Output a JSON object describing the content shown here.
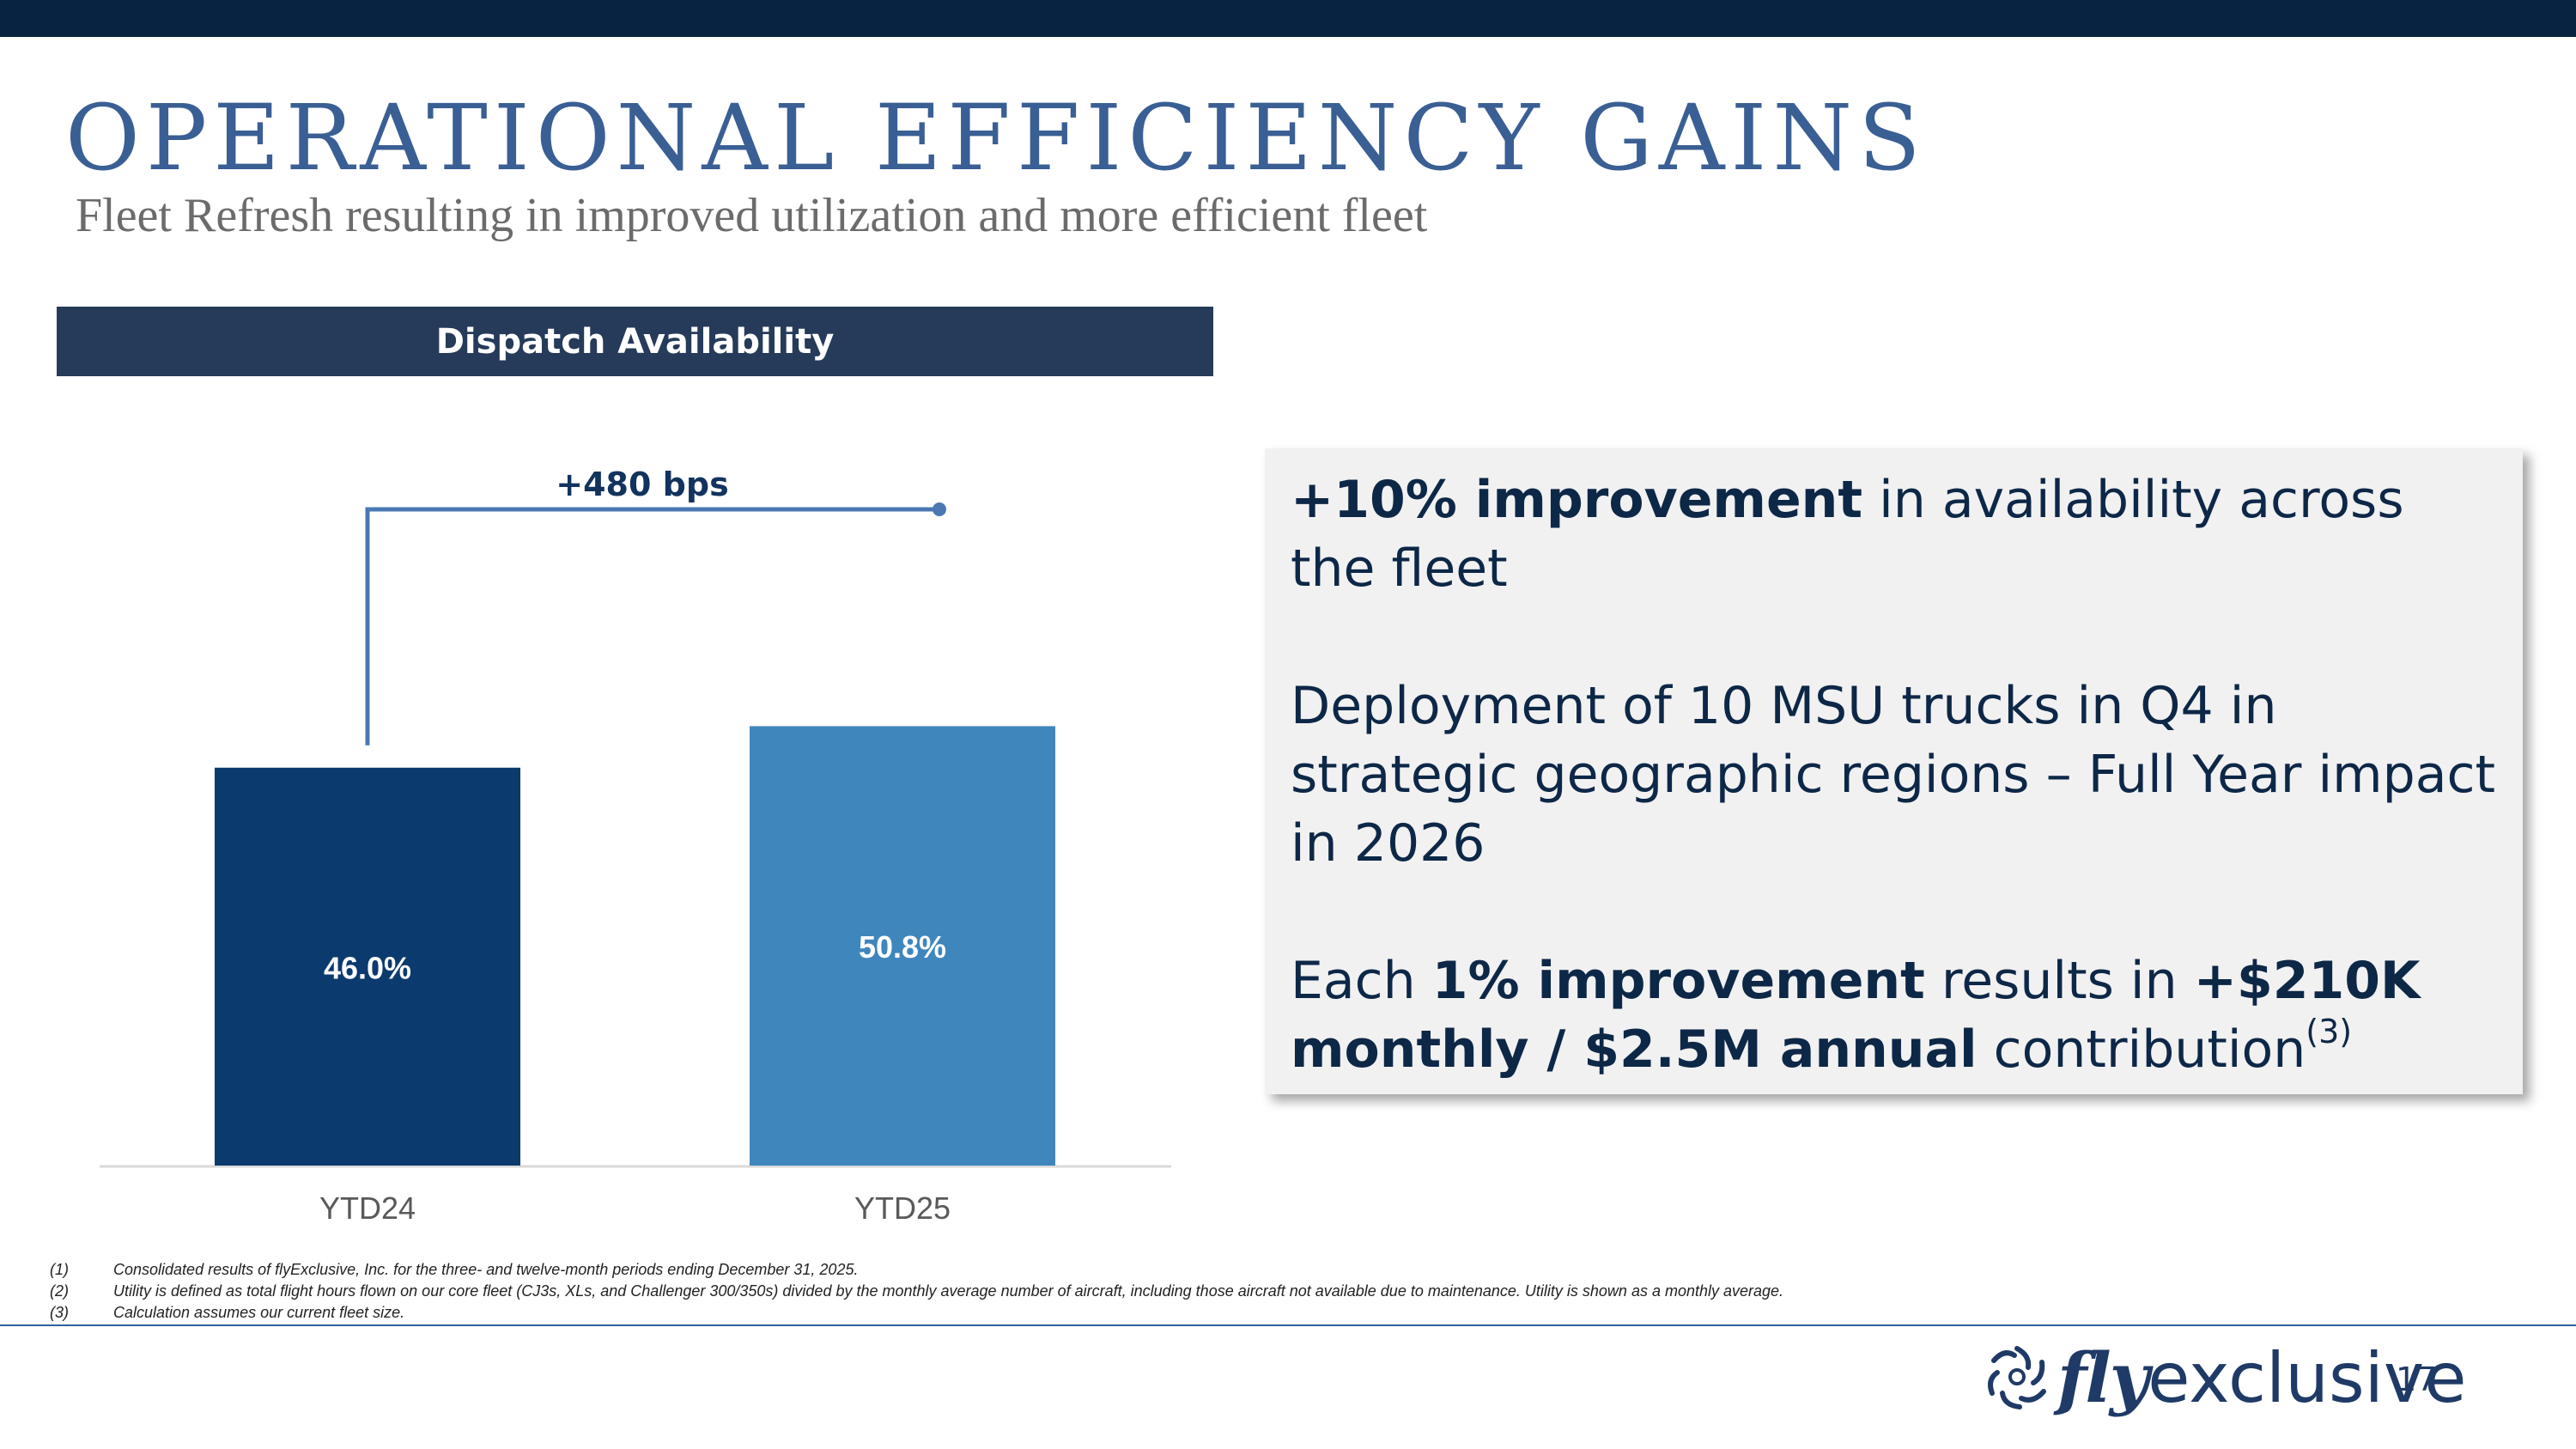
{
  "slide": {
    "title": "OPERATIONAL EFFICIENCY GAINS",
    "subtitle": "Fleet Refresh resulting in improved utilization and more efficient fleet",
    "page_number": "17"
  },
  "chart_header": "Dispatch Availability",
  "chart_data": {
    "type": "bar",
    "title": "Dispatch Availability",
    "categories": [
      "YTD24",
      "YTD25"
    ],
    "values": [
      46.0,
      50.8
    ],
    "value_labels": [
      "46.0%",
      "50.8%"
    ],
    "bar_colors": [
      "#0b3a6e",
      "#3f86bd"
    ],
    "annotation": "+480 bps",
    "annotation_color": "#4a78b3",
    "ylim": [
      0,
      100
    ],
    "grid": false,
    "legend": "none"
  },
  "infobox": {
    "p1_bold": "+10% improvement",
    "p1_rest": " in availability across the fleet",
    "p2": "Deployment of 10 MSU trucks in Q4 in strategic geographic regions – Full Year impact in 2026",
    "p3_pre": "Each ",
    "p3_bold1": "1% improvement",
    "p3_mid": " results in ",
    "p3_bold2": "+$210K monthly / $2.5M annual",
    "p3_post": " contribution",
    "p3_sup": "(3)"
  },
  "footnotes": [
    {
      "num": "(1)",
      "text": "Consolidated results of flyExclusive, Inc. for the three- and twelve-month periods ending December 31, 2025."
    },
    {
      "num": "(2)",
      "text": "Utility is defined as total flight hours flown on our core fleet (CJ3s, XLs, and Challenger 300/350s) divided by the monthly average number of aircraft, including those aircraft not available due to maintenance.  Utility is shown as a monthly average."
    },
    {
      "num": "(3)",
      "text": "Calculation assumes our current fleet size."
    }
  ],
  "logo": {
    "fly": "fly",
    "exclusive": "exclusive",
    "icon": "turbine-swirl-icon"
  },
  "colors": {
    "topbar": "#082241",
    "title": "#3a5f94",
    "header_bg": "#253b59",
    "text_dark": "#0d2747"
  }
}
